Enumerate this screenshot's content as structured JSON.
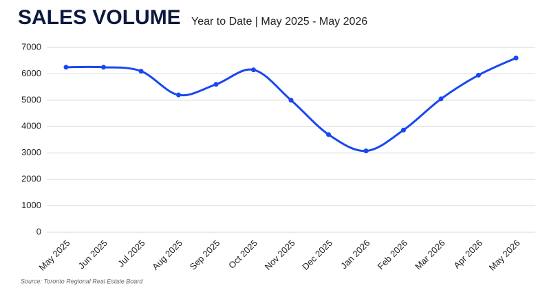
{
  "chart_data": {
    "type": "line",
    "title": "SALES VOLUME",
    "subtitle": "Year to Date | May 2025 - May 2026",
    "source": "Source: Toronto Regional Real Estate Board",
    "categories": [
      "May 2025",
      "Jun 2025",
      "Jul 2025",
      "Aug 2025",
      "Sep 2025",
      "Oct 2025",
      "Nov 2025",
      "Dec 2025",
      "Jan 2026",
      "Feb 2026",
      "Mar 2026",
      "Apr 2026",
      "May 2026"
    ],
    "values": [
      6250,
      6250,
      6100,
      5200,
      5600,
      6150,
      5000,
      3700,
      3080,
      3870,
      5050,
      5950,
      6600
    ],
    "color": "#1a47f0",
    "ylim": [
      0,
      7000
    ],
    "yticks": [
      0,
      1000,
      2000,
      3000,
      4000,
      5000,
      6000,
      7000
    ],
    "grid": true
  }
}
